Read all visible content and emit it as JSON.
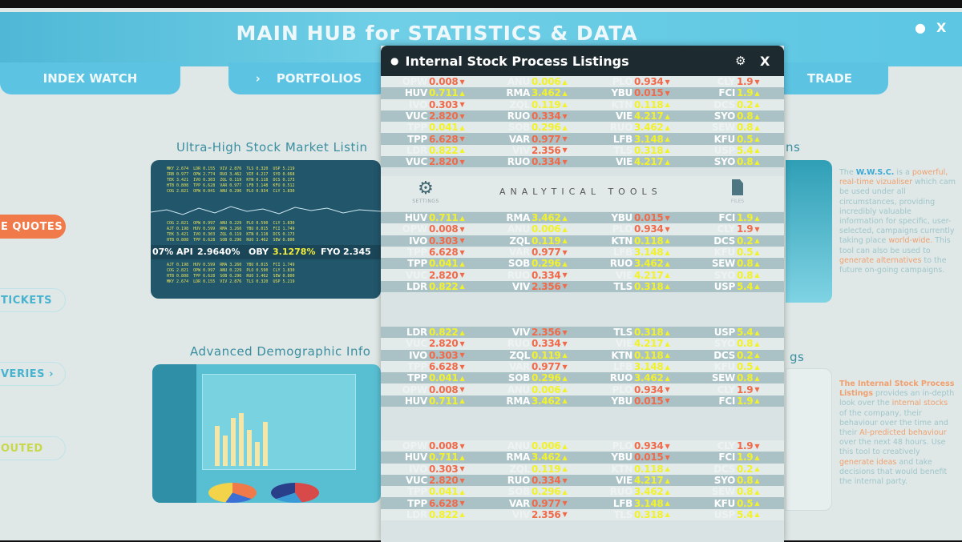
{
  "header": {
    "title": "MAIN HUB for STATISTICS & DATA",
    "icons": [
      "dot-icon",
      "close-icon"
    ],
    "close_label": "X",
    "dot_label": "●"
  },
  "tabs": [
    {
      "label": "INDEX WATCH"
    },
    {
      "label": "PORTFOLIOS",
      "chevron": "›"
    },
    {
      "label": "TRADE"
    }
  ],
  "sidebar": [
    {
      "label": "E QUOTES"
    },
    {
      "label": "TICKETS"
    },
    {
      "label": "VERIES",
      "chevron": "›"
    },
    {
      "label": "OUTED"
    }
  ],
  "sections": {
    "s1": "Ultra-High Stock Market Listin",
    "s1_tail": "ns",
    "s2": "Advanced Demographic Info",
    "s2_tail": "gs"
  },
  "ticker_bar": {
    "a": "07%",
    "b": "API",
    "c": "2.9640%",
    "d": "OBY",
    "e": "3.1278%",
    "f": "FYO",
    "g": "2.345"
  },
  "info1": {
    "p1": "The ",
    "brand": "W.W.S.C.",
    "p2": " is a ",
    "o1": "powerful, real-time vizualiser",
    "p3": " which cam be used under all circumstances, providing incredibly valuable information for specific, user-selected, campaigns currently taking place ",
    "o2": "world-wide.",
    "p4": " This tool can also be used to ",
    "o3": "generate alternatives",
    "p5": " to the future on-going campaigns."
  },
  "info2": {
    "title": "The Internal Stock Process Listings",
    "p1": " provides an in-depth look over the ",
    "o1": "internal stocks",
    "p2": " of the company, their behaviour over the time and their ",
    "o2": "AI-predicted behaviour",
    "p3": " over the next 48 hours. Use this tool to creatively ",
    "o3": "generate ideas",
    "p4": " and take decisions that would benefit the internal party."
  },
  "popup": {
    "title": "Internal Stock Process Listings",
    "bullet": "●",
    "settings_label": "SETTINGS",
    "tools_label": "ANALYTICAL TOOLS",
    "files_label": "FILES",
    "close_label": "X"
  },
  "colors": {
    "up": "#f2f22a",
    "down": "#f06a4a",
    "accent": "#5cc4e2",
    "orange": "#f07a4a"
  },
  "blocks": [
    [
      [
        [
          "OPW",
          "0.008",
          "down"
        ],
        [
          "ANU",
          "0.006",
          "up"
        ],
        [
          "PLO",
          "0.934",
          "down"
        ],
        [
          "CLY",
          "1.9",
          "down"
        ]
      ],
      [
        [
          "HUV",
          "0.711",
          "up"
        ],
        [
          "RMA",
          "3.462",
          "up"
        ],
        [
          "YBU",
          "0.015",
          "down"
        ],
        [
          "FCI",
          "1.9",
          "up"
        ]
      ],
      [
        [
          "IVO",
          "0.303",
          "down"
        ],
        [
          "ZQL",
          "0.119",
          "up"
        ],
        [
          "KTN",
          "0.118",
          "up"
        ],
        [
          "DCS",
          "0.2",
          "up"
        ]
      ],
      [
        [
          "VUC",
          "2.820",
          "down"
        ],
        [
          "RUO",
          "0.334",
          "down"
        ],
        [
          "VIE",
          "4.217",
          "up"
        ],
        [
          "SYO",
          "0.8",
          "up"
        ]
      ],
      [
        [
          "TPP",
          "0.041",
          "up"
        ],
        [
          "SOB",
          "0.296",
          "up"
        ],
        [
          "RUO",
          "3.462",
          "up"
        ],
        [
          "SEW",
          "0.8",
          "up"
        ]
      ],
      [
        [
          "TPP",
          "6.628",
          "down"
        ],
        [
          "VAR",
          "0.977",
          "down"
        ],
        [
          "LFB",
          "3.148",
          "up"
        ],
        [
          "KFU",
          "0.5",
          "up"
        ]
      ],
      [
        [
          "LDR",
          "0.822",
          "up"
        ],
        [
          "VIV",
          "2.356",
          "down"
        ],
        [
          "TLS",
          "0.318",
          "up"
        ],
        [
          "USP",
          "5.4",
          "up"
        ]
      ],
      [
        [
          "VUC",
          "2.820",
          "down"
        ],
        [
          "RUO",
          "0.334",
          "down"
        ],
        [
          "VIE",
          "4.217",
          "up"
        ],
        [
          "SYO",
          "0.8",
          "up"
        ]
      ]
    ],
    [
      [
        [
          "HUV",
          "0.711",
          "up"
        ],
        [
          "RMA",
          "3.462",
          "up"
        ],
        [
          "YBU",
          "0.015",
          "down"
        ],
        [
          "FCI",
          "1.9",
          "up"
        ]
      ],
      [
        [
          "OPW",
          "0.008",
          "down"
        ],
        [
          "ANU",
          "0.006",
          "up"
        ],
        [
          "PLO",
          "0.934",
          "down"
        ],
        [
          "CLY",
          "1.9",
          "down"
        ]
      ],
      [
        [
          "IVO",
          "0.303",
          "down"
        ],
        [
          "ZQL",
          "0.119",
          "up"
        ],
        [
          "KTN",
          "0.118",
          "up"
        ],
        [
          "DCS",
          "0.2",
          "up"
        ]
      ],
      [
        [
          "TPP",
          "6.628",
          "down"
        ],
        [
          "VAR",
          "0.977",
          "down"
        ],
        [
          "LFB",
          "3.148",
          "up"
        ],
        [
          "KFU",
          "0.5",
          "up"
        ]
      ],
      [
        [
          "TPP",
          "0.041",
          "up"
        ],
        [
          "SOB",
          "0.296",
          "up"
        ],
        [
          "RUO",
          "3.462",
          "up"
        ],
        [
          "SEW",
          "0.8",
          "up"
        ]
      ],
      [
        [
          "VUC",
          "2.820",
          "down"
        ],
        [
          "RUO",
          "0.334",
          "down"
        ],
        [
          "VIE",
          "4.217",
          "up"
        ],
        [
          "SYO",
          "0.8",
          "up"
        ]
      ],
      [
        [
          "LDR",
          "0.822",
          "up"
        ],
        [
          "VIV",
          "2.356",
          "down"
        ],
        [
          "TLS",
          "0.318",
          "up"
        ],
        [
          "USP",
          "5.4",
          "up"
        ]
      ]
    ],
    [
      [
        [
          "LDR",
          "0.822",
          "up"
        ],
        [
          "VIV",
          "2.356",
          "down"
        ],
        [
          "TLS",
          "0.318",
          "up"
        ],
        [
          "USP",
          "5.4",
          "up"
        ]
      ],
      [
        [
          "VUC",
          "2.820",
          "down"
        ],
        [
          "RUO",
          "0.334",
          "down"
        ],
        [
          "VIE",
          "4.217",
          "up"
        ],
        [
          "SYO",
          "0.8",
          "up"
        ]
      ],
      [
        [
          "IVO",
          "0.303",
          "down"
        ],
        [
          "ZQL",
          "0.119",
          "up"
        ],
        [
          "KTN",
          "0.118",
          "up"
        ],
        [
          "DCS",
          "0.2",
          "up"
        ]
      ],
      [
        [
          "TPP",
          "6.628",
          "down"
        ],
        [
          "VAR",
          "0.977",
          "down"
        ],
        [
          "LFB",
          "3.148",
          "up"
        ],
        [
          "KFU",
          "0.5",
          "up"
        ]
      ],
      [
        [
          "TPP",
          "0.041",
          "up"
        ],
        [
          "SOB",
          "0.296",
          "up"
        ],
        [
          "RUO",
          "3.462",
          "up"
        ],
        [
          "SEW",
          "0.8",
          "up"
        ]
      ],
      [
        [
          "OPW",
          "0.008",
          "down"
        ],
        [
          "ANU",
          "0.006",
          "up"
        ],
        [
          "PLO",
          "0.934",
          "down"
        ],
        [
          "CLY",
          "1.9",
          "down"
        ]
      ],
      [
        [
          "HUV",
          "0.711",
          "up"
        ],
        [
          "RMA",
          "3.462",
          "up"
        ],
        [
          "YBU",
          "0.015",
          "down"
        ],
        [
          "FCI",
          "1.9",
          "up"
        ]
      ]
    ],
    [
      [
        [
          "OPW",
          "0.008",
          "down"
        ],
        [
          "ANU",
          "0.006",
          "up"
        ],
        [
          "PLO",
          "0.934",
          "down"
        ],
        [
          "CLY",
          "1.9",
          "down"
        ]
      ],
      [
        [
          "HUV",
          "0.711",
          "up"
        ],
        [
          "RMA",
          "3.462",
          "up"
        ],
        [
          "YBU",
          "0.015",
          "down"
        ],
        [
          "FCI",
          "1.9",
          "up"
        ]
      ],
      [
        [
          "IVO",
          "0.303",
          "down"
        ],
        [
          "ZQL",
          "0.119",
          "up"
        ],
        [
          "KTN",
          "0.118",
          "up"
        ],
        [
          "DCS",
          "0.2",
          "up"
        ]
      ],
      [
        [
          "VUC",
          "2.820",
          "down"
        ],
        [
          "RUO",
          "0.334",
          "down"
        ],
        [
          "VIE",
          "4.217",
          "up"
        ],
        [
          "SYO",
          "0.8",
          "up"
        ]
      ],
      [
        [
          "TPP",
          "0.041",
          "up"
        ],
        [
          "SOB",
          "0.296",
          "up"
        ],
        [
          "RUO",
          "3.462",
          "up"
        ],
        [
          "SEW",
          "0.8",
          "up"
        ]
      ],
      [
        [
          "TPP",
          "6.628",
          "down"
        ],
        [
          "VAR",
          "0.977",
          "down"
        ],
        [
          "LFB",
          "3.148",
          "up"
        ],
        [
          "KFU",
          "0.5",
          "up"
        ]
      ],
      [
        [
          "LDR",
          "0.822",
          "up"
        ],
        [
          "VIV",
          "2.356",
          "down"
        ],
        [
          "TLS",
          "0.318",
          "up"
        ],
        [
          "USP",
          "5.4",
          "up"
        ]
      ]
    ]
  ]
}
